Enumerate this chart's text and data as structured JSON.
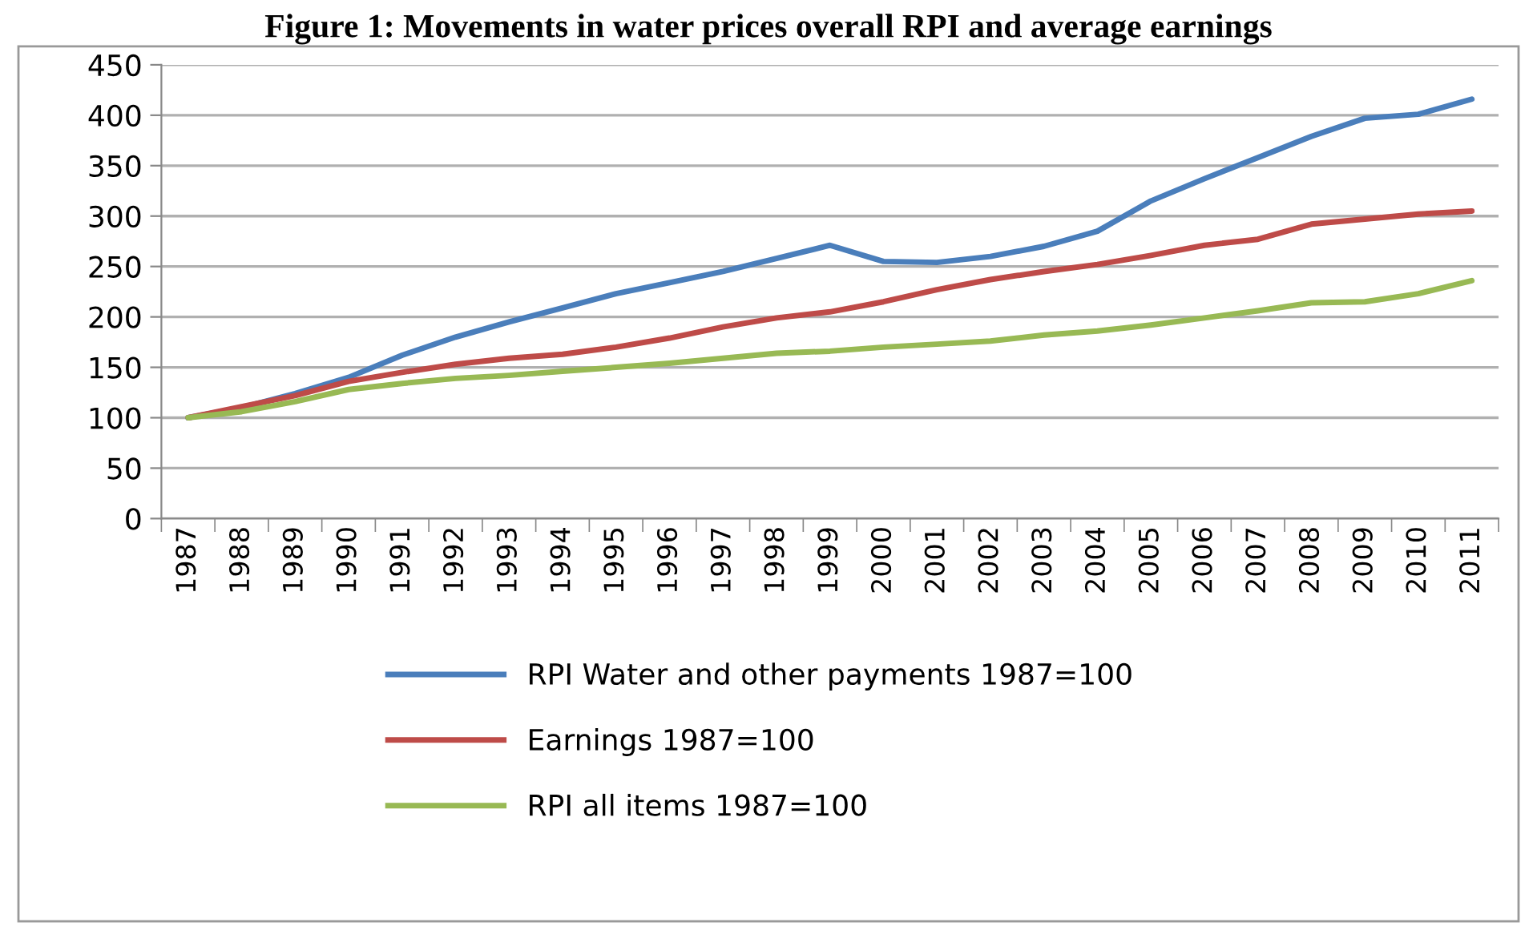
{
  "chart_data": {
    "type": "line",
    "title": "Figure 1: Movements in water prices overall RPI and average earnings",
    "categories": [
      "1987",
      "1988",
      "1989",
      "1990",
      "1991",
      "1992",
      "1993",
      "1994",
      "1995",
      "1996",
      "1997",
      "1998",
      "1999",
      "2000",
      "2001",
      "2002",
      "2003",
      "2004",
      "2005",
      "2006",
      "2007",
      "2008",
      "2009",
      "2010",
      "2011"
    ],
    "series": [
      {
        "name": "RPI Water and other payments 1987=100",
        "color": "#4a7ebb",
        "values": [
          100,
          110,
          124,
          140,
          162,
          180,
          195,
          209,
          223,
          234,
          245,
          258,
          271,
          255,
          254,
          260,
          270,
          285,
          315,
          337,
          358,
          379,
          397,
          401,
          416
        ]
      },
      {
        "name": "Earnings 1987=100",
        "color": "#be4b48",
        "values": [
          100,
          111,
          122,
          136,
          145,
          153,
          159,
          163,
          170,
          179,
          190,
          199,
          205,
          215,
          227,
          237,
          245,
          252,
          261,
          271,
          277,
          292,
          297,
          302,
          305
        ]
      },
      {
        "name": "RPI all items 1987=100",
        "color": "#98b954",
        "values": [
          100,
          106,
          116,
          128,
          134,
          139,
          142,
          146,
          150,
          154,
          159,
          164,
          166,
          170,
          173,
          176,
          182,
          186,
          192,
          199,
          206,
          214,
          215,
          223,
          236
        ]
      }
    ],
    "ylim": [
      0,
      450
    ],
    "yticks": [
      0,
      50,
      100,
      150,
      200,
      250,
      300,
      350,
      400,
      450
    ],
    "grid": "y",
    "legend": "bottom",
    "marker": "none",
    "line_style": "solid"
  }
}
